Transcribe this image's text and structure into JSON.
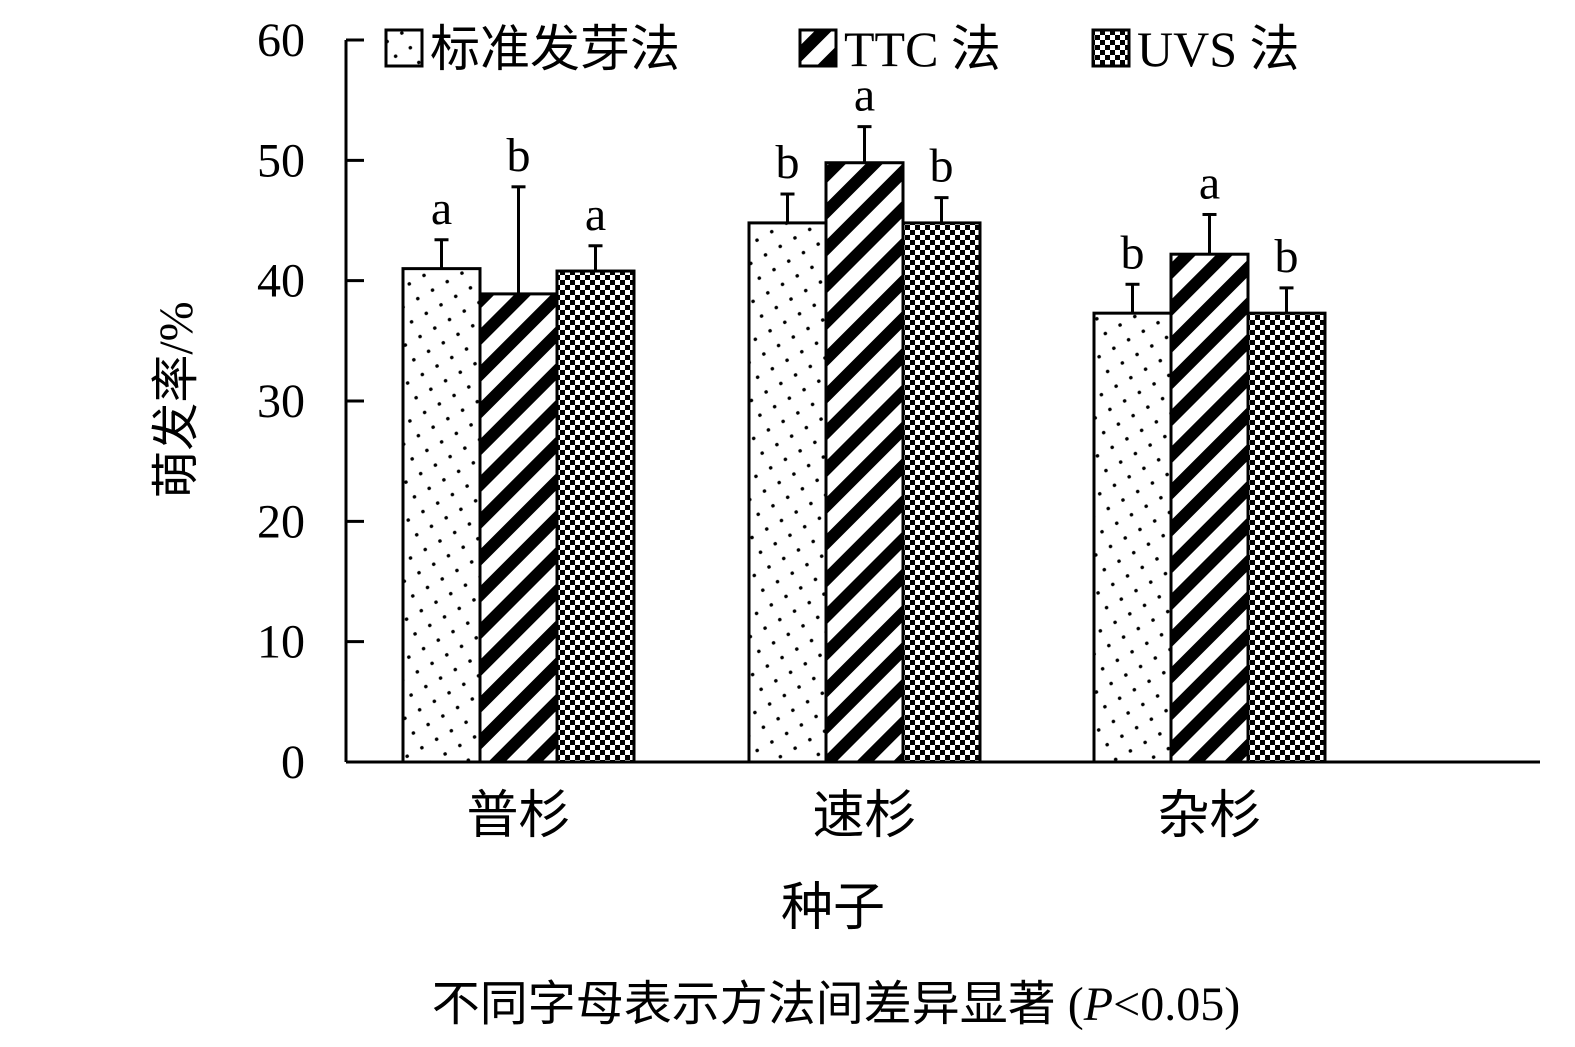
{
  "chart_data": {
    "type": "bar",
    "xlabel": "种子",
    "ylabel": "萌发率/%",
    "ylim": [
      0,
      60
    ],
    "yticks": [
      0,
      10,
      20,
      30,
      40,
      50,
      60
    ],
    "categories": [
      "普杉",
      "速杉",
      "杂杉"
    ],
    "legend_position": "top",
    "series": [
      {
        "name": "标准发芽法",
        "pattern": "dots",
        "values": [
          41.0,
          44.8,
          37.3
        ],
        "errors": [
          2.4,
          2.4,
          2.4
        ],
        "letters": [
          "a",
          "b",
          "b"
        ]
      },
      {
        "name": "TTC 法",
        "pattern": "diagonal-stripes",
        "values": [
          38.9,
          49.8,
          42.2
        ],
        "errors": [
          8.9,
          3.0,
          3.3
        ],
        "letters": [
          "b",
          "a",
          "a"
        ]
      },
      {
        "name": "UVS 法",
        "pattern": "checkerboard",
        "values": [
          40.8,
          44.8,
          37.3
        ],
        "errors": [
          2.1,
          2.1,
          2.1
        ],
        "letters": [
          "a",
          "b",
          "b"
        ]
      }
    ],
    "note": "不同字母表示方法间差异显著 (",
    "note_p": "P",
    "note_tail": "<0.05)"
  }
}
